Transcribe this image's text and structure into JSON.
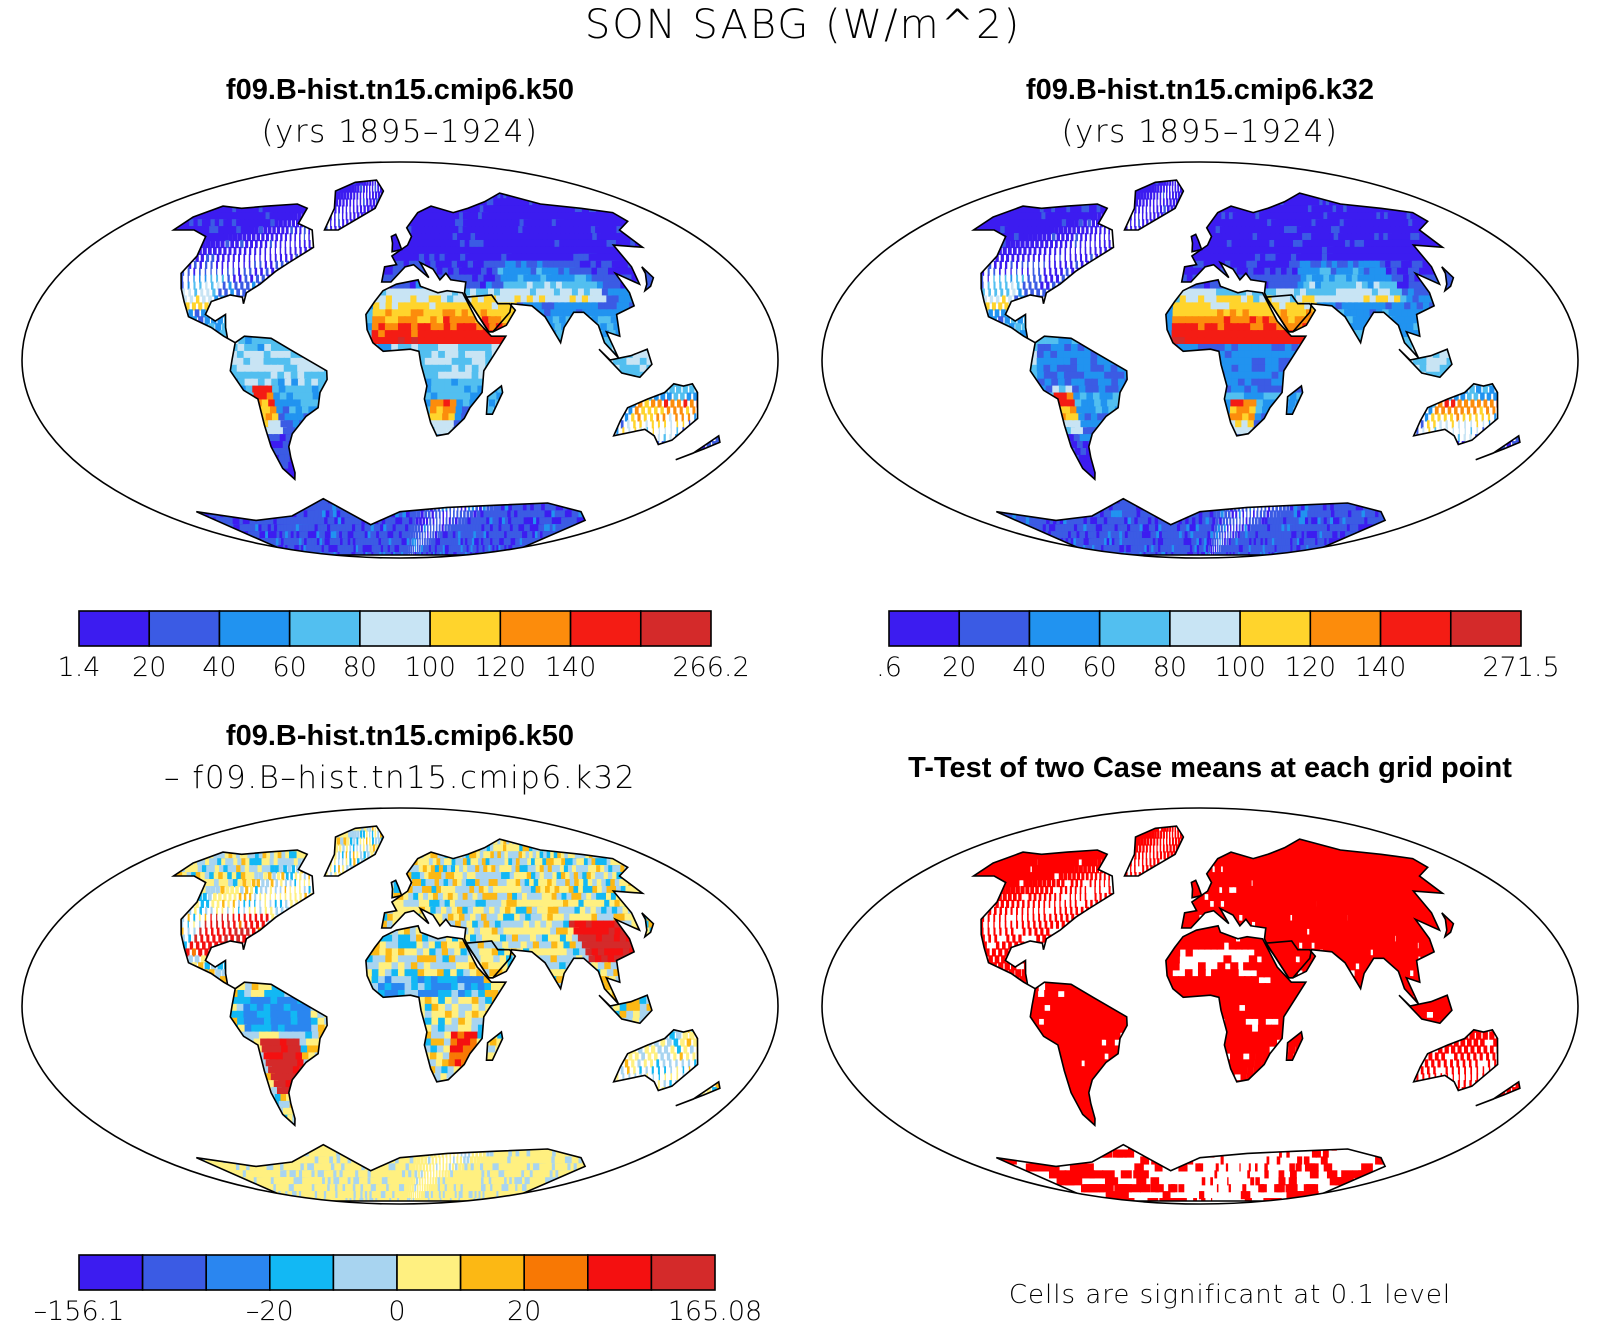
{
  "title": "SON SABG (W/m^2)",
  "panels": [
    {
      "title": "f09.B-hist.tn15.cmip6.k50",
      "subtitle": "(yrs 1895–1924)",
      "colorbar": {
        "colors": [
          "#3c1cf0",
          "#3b5be4",
          "#2193f0",
          "#52bff0",
          "#c8e4f4",
          "#ffd42c",
          "#fc8c0c",
          "#f41c14",
          "#d42a2a"
        ],
        "labels": [
          "1.4",
          "20",
          "40",
          "60",
          "80",
          "100",
          "120",
          "140",
          "266.2"
        ],
        "label_boundaries": [
          0,
          1,
          2,
          3,
          4,
          5,
          6,
          7,
          9
        ]
      },
      "field_range": [
        1.4,
        266.2
      ]
    },
    {
      "title": "f09.B-hist.tn15.cmip6.k32",
      "subtitle": "(yrs 1895–1924)",
      "colorbar": {
        "colors": [
          "#3c1cf0",
          "#3b5be4",
          "#2193f0",
          "#52bff0",
          "#c8e4f4",
          "#ffd42c",
          "#fc8c0c",
          "#f41c14",
          "#d42a2a"
        ],
        "labels": [
          ".6",
          "20",
          "40",
          "60",
          "80",
          "100",
          "120",
          "140",
          "271.5"
        ],
        "label_boundaries": [
          0,
          1,
          2,
          3,
          4,
          5,
          6,
          7,
          9
        ]
      },
      "field_range": [
        0.6,
        271.5
      ]
    },
    {
      "title": "f09.B-hist.tn15.cmip6.k50",
      "subtitle": "– f09.B–hist.tn15.cmip6.k32",
      "colorbar": {
        "colors": [
          "#3c1cf0",
          "#3b5be4",
          "#2a86f0",
          "#12b8f4",
          "#a8d4f0",
          "#fff080",
          "#fcb814",
          "#f87804",
          "#f41010",
          "#d42a2a"
        ],
        "labels": [
          "–156.1",
          "–20",
          "0",
          "20",
          "165.08"
        ],
        "label_boundaries": [
          0,
          3,
          5,
          7,
          10
        ]
      },
      "field_range": [
        -156.1,
        165.08
      ]
    },
    {
      "title": "T-Test of two Case means at each grid point",
      "note": "Cells are significant at 0.1 level",
      "significance_color": "#ff0000",
      "significance_level": 0.1
    }
  ]
}
